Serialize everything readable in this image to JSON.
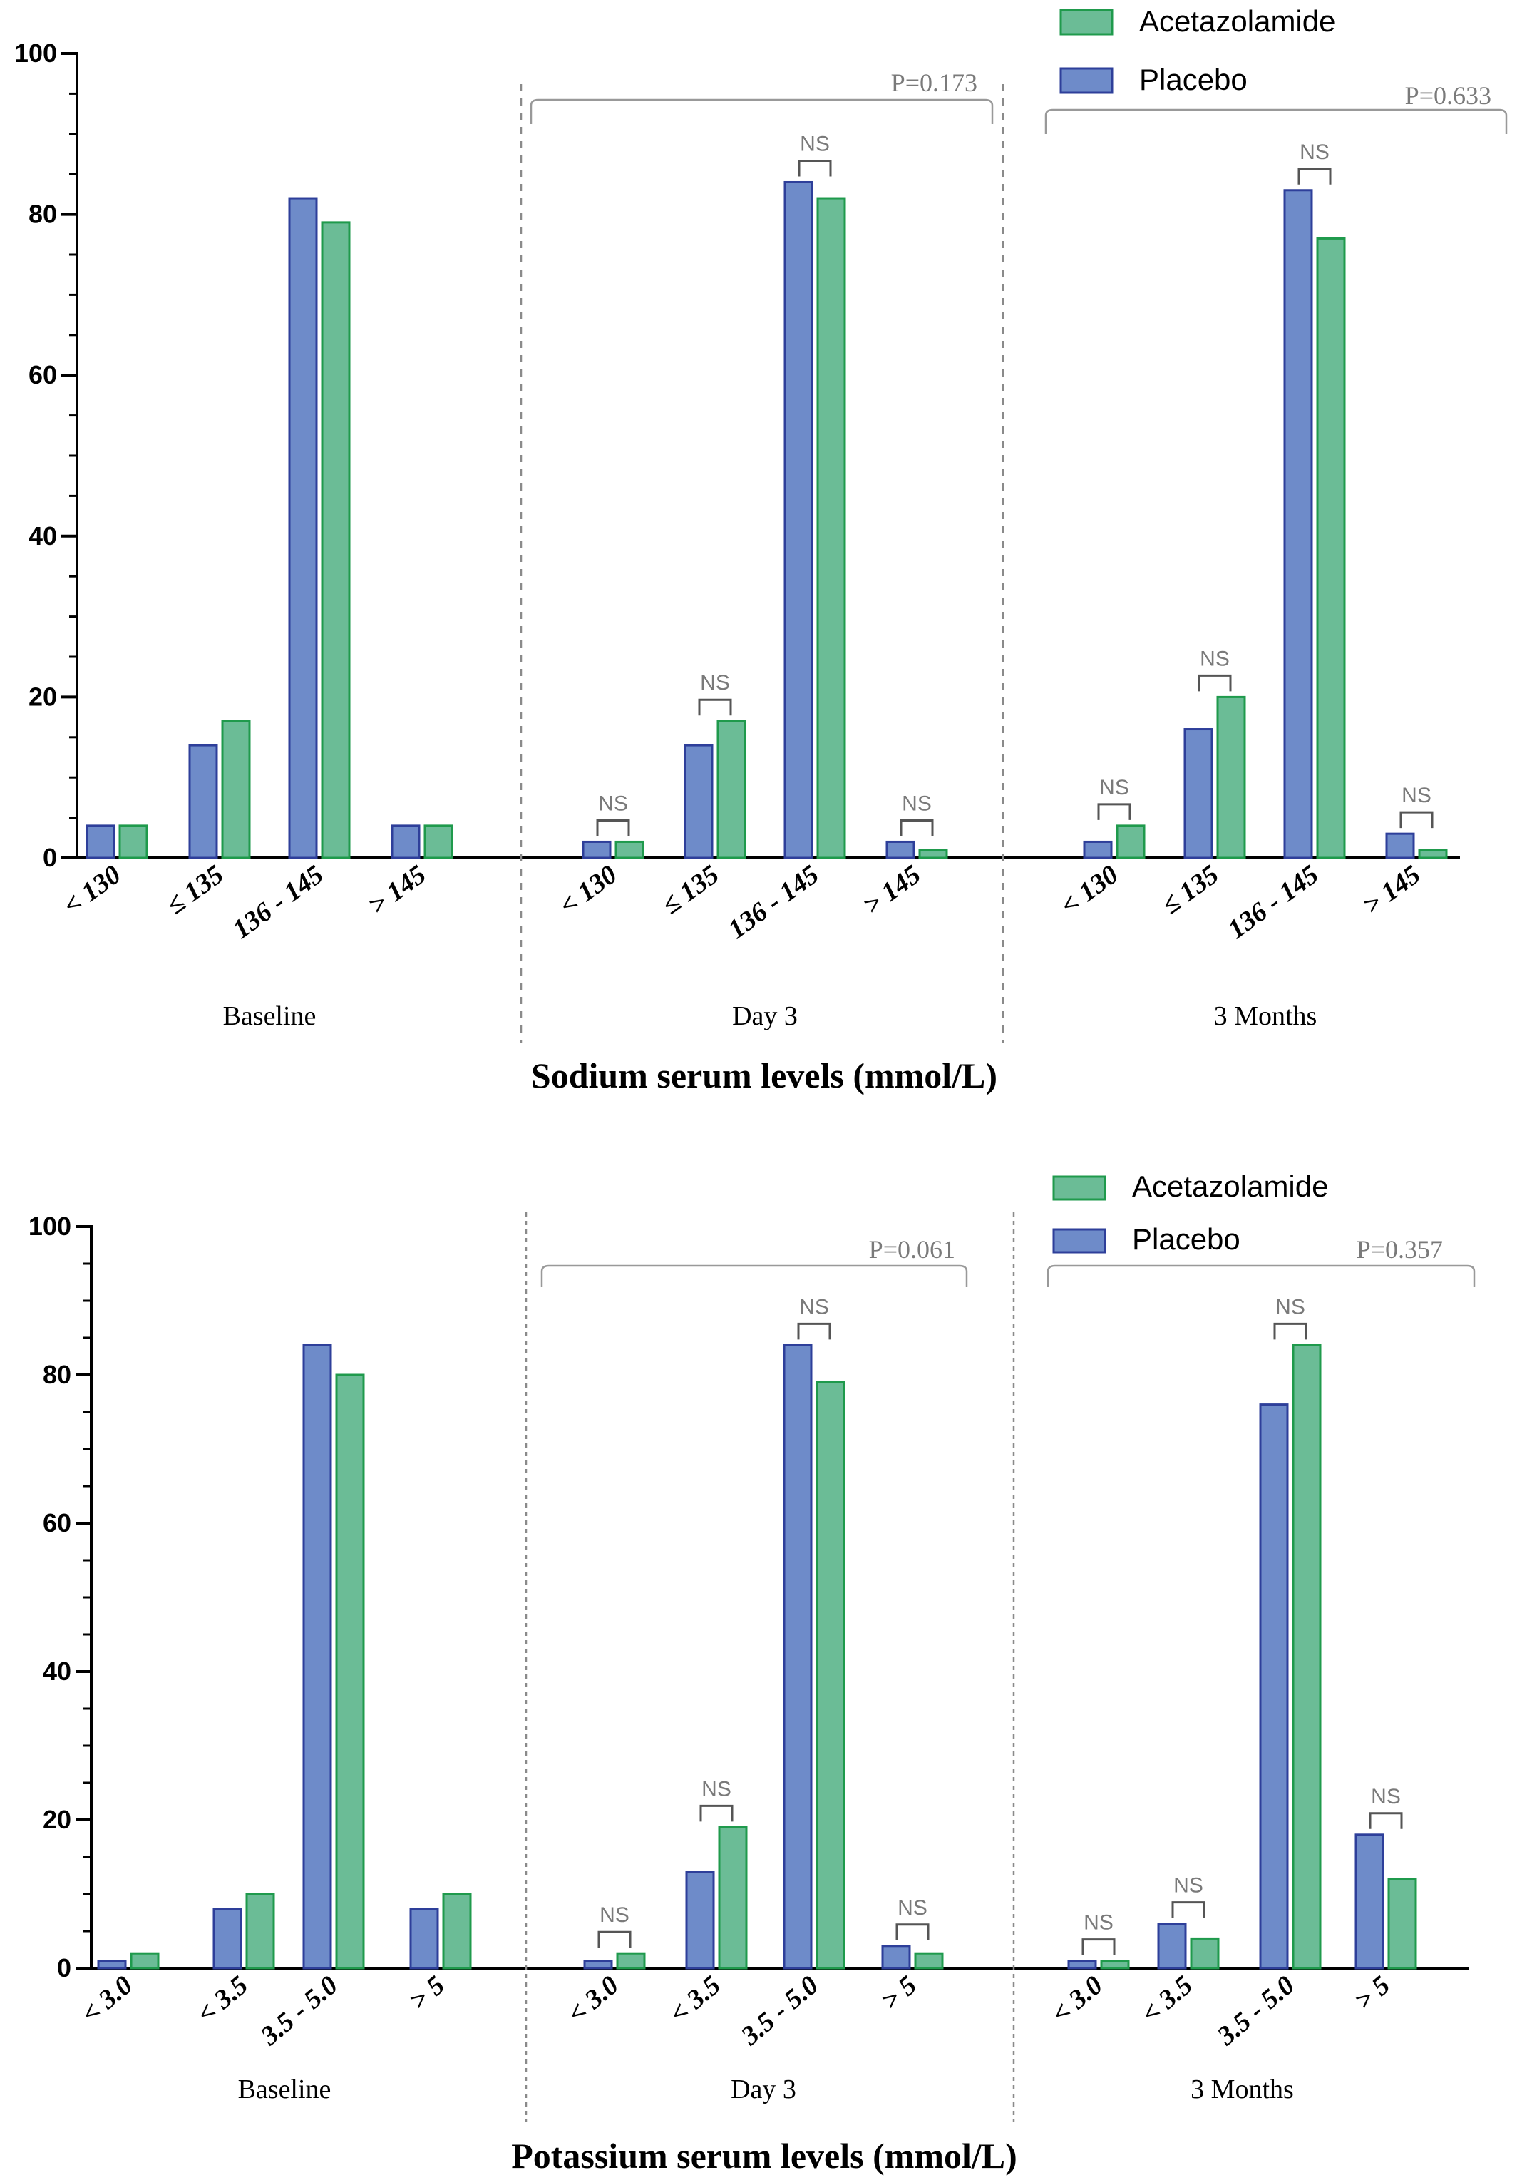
{
  "colors": {
    "placebo_fill": "#6e8bc9",
    "placebo_stroke": "#2e3f9a",
    "acetazolamide_fill": "#6bbc96",
    "acetazolamide_stroke": "#1f9a4c",
    "axis": "#000000",
    "annotation": "#7a7a7a",
    "divider": "#8a8a8a"
  },
  "chart_data": [
    {
      "type": "bar",
      "title": "Sodium serum levels (mmol/L)",
      "ylim": [
        0,
        100
      ],
      "yticks": [
        0,
        20,
        40,
        60,
        80,
        100
      ],
      "legend": {
        "placement": "top-right",
        "entries": [
          {
            "name": "Acetazolamide",
            "series": "acetazolamide"
          },
          {
            "name": "Placebo",
            "series": "placebo"
          }
        ]
      },
      "groups": [
        {
          "label": "Baseline",
          "categories": [
            "< 130",
            "≤ 135",
            "136 - 145",
            "> 145"
          ],
          "series": [
            {
              "name": "Placebo",
              "key": "placebo",
              "values": [
                4,
                14,
                82,
                4
              ]
            },
            {
              "name": "Acetazolamide",
              "key": "acetazolamide",
              "values": [
                4,
                17,
                79,
                4
              ]
            }
          ],
          "pair_labels": [],
          "p_value": ""
        },
        {
          "label": "Day 3",
          "categories": [
            "< 130",
            "≤ 135",
            "136 - 145",
            "> 145"
          ],
          "series": [
            {
              "name": "Placebo",
              "key": "placebo",
              "values": [
                2,
                14,
                84,
                2
              ]
            },
            {
              "name": "Acetazolamide",
              "key": "acetazolamide",
              "values": [
                2,
                17,
                82,
                1
              ]
            }
          ],
          "pair_labels": [
            "NS",
            "NS",
            "NS",
            "NS"
          ],
          "p_value": "P=0.173"
        },
        {
          "label": "3 Months",
          "categories": [
            "< 130",
            "≤ 135",
            "136 - 145",
            "> 145"
          ],
          "series": [
            {
              "name": "Placebo",
              "key": "placebo",
              "values": [
                2,
                16,
                83,
                3
              ]
            },
            {
              "name": "Acetazolamide",
              "key": "acetazolamide",
              "values": [
                4,
                20,
                77,
                1
              ]
            }
          ],
          "pair_labels": [
            "NS",
            "NS",
            "NS",
            "NS"
          ],
          "p_value": "P=0.633"
        }
      ]
    },
    {
      "type": "bar",
      "title": "Potassium serum levels (mmol/L)",
      "ylim": [
        0,
        100
      ],
      "yticks": [
        0,
        20,
        40,
        60,
        80,
        100
      ],
      "legend": {
        "placement": "top-right",
        "entries": [
          {
            "name": "Acetazolamide",
            "series": "acetazolamide"
          },
          {
            "name": "Placebo",
            "series": "placebo"
          }
        ]
      },
      "groups": [
        {
          "label": "Baseline",
          "categories": [
            "< 3.0",
            "< 3.5",
            "3.5 - 5.0",
            "> 5"
          ],
          "series": [
            {
              "name": "Placebo",
              "key": "placebo",
              "values": [
                1,
                8,
                84,
                8
              ]
            },
            {
              "name": "Acetazolamide",
              "key": "acetazolamide",
              "values": [
                2,
                10,
                80,
                10
              ]
            }
          ],
          "pair_labels": [],
          "p_value": ""
        },
        {
          "label": "Day 3",
          "categories": [
            "< 3.0",
            "< 3.5",
            "3.5 - 5.0",
            "> 5"
          ],
          "series": [
            {
              "name": "Placebo",
              "key": "placebo",
              "values": [
                1,
                13,
                84,
                3
              ]
            },
            {
              "name": "Acetazolamide",
              "key": "acetazolamide",
              "values": [
                2,
                19,
                79,
                2
              ]
            }
          ],
          "pair_labels": [
            "NS",
            "NS",
            "NS",
            "NS"
          ],
          "p_value": "P=0.061"
        },
        {
          "label": "3 Months",
          "categories": [
            "< 3.0",
            "< 3.5",
            "3.5 - 5.0",
            "> 5"
          ],
          "series": [
            {
              "name": "Placebo",
              "key": "placebo",
              "values": [
                1,
                6,
                76,
                18
              ]
            },
            {
              "name": "Acetazolamide",
              "key": "acetazolamide",
              "values": [
                1,
                4,
                84,
                12
              ]
            }
          ],
          "pair_labels": [
            "NS",
            "NS",
            "NS",
            "NS"
          ],
          "p_value": "P=0.357"
        }
      ]
    }
  ]
}
